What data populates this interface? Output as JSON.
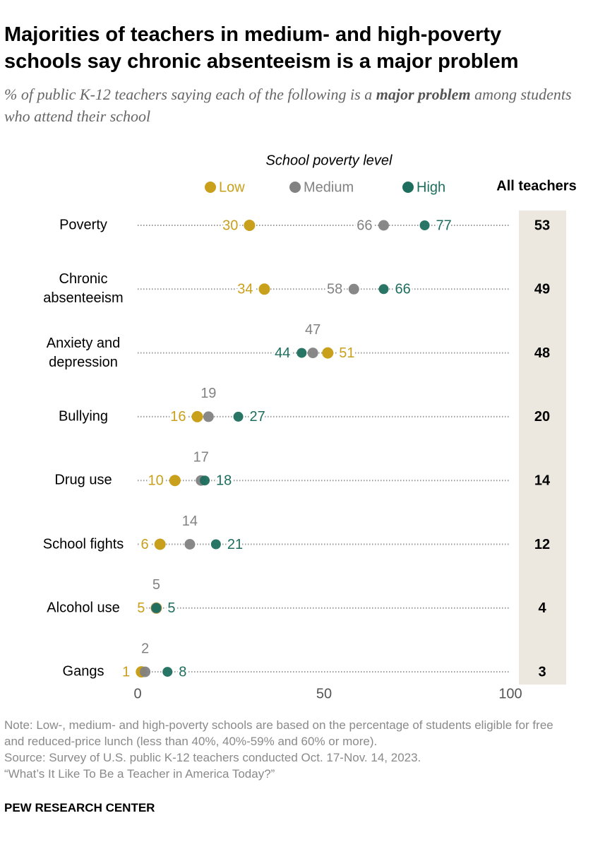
{
  "chart_data": {
    "type": "dot",
    "title": "Majorities of teachers in medium- and high-poverty schools say chronic absenteeism is a major problem",
    "subtitle": [
      "% of public K-12 teachers saying each of the following is a ",
      "major problem",
      " among students who attend their school"
    ],
    "legend_title": "School poverty level",
    "categories": [
      "Poverty",
      "Chronic absenteeism",
      "Anxiety and depression",
      "Bullying",
      "Drug use",
      "School fights",
      "Alcohol use",
      "Gangs"
    ],
    "series": [
      {
        "name": "Low",
        "color": "#c9a01c",
        "values": [
          30,
          34,
          51,
          16,
          10,
          6,
          5,
          1
        ]
      },
      {
        "name": "Medium",
        "color": "#828282",
        "values": [
          66,
          58,
          47,
          19,
          17,
          14,
          5,
          2
        ]
      },
      {
        "name": "High",
        "color": "#1d6e5e",
        "values": [
          77,
          66,
          44,
          27,
          18,
          21,
          5,
          8
        ]
      }
    ],
    "total": {
      "name": "All teachers",
      "values": [
        53,
        49,
        48,
        20,
        14,
        12,
        4,
        3
      ]
    },
    "xlim": [
      0,
      100
    ],
    "xticks": [
      0,
      50,
      100
    ],
    "note": "Note: Low-, medium- and high-poverty schools are based on the percentage of students eligible for free and reduced-price lunch (less than 40%, 40%-59% and 60% or more).",
    "source": [
      "Source: Survey of U.S. public K-12 teachers conducted Oct. 17-Nov. 14, 2023.",
      "“What’s It Like To Be a Teacher in America Today?”"
    ],
    "brand": "PEW RESEARCH CENTER"
  }
}
